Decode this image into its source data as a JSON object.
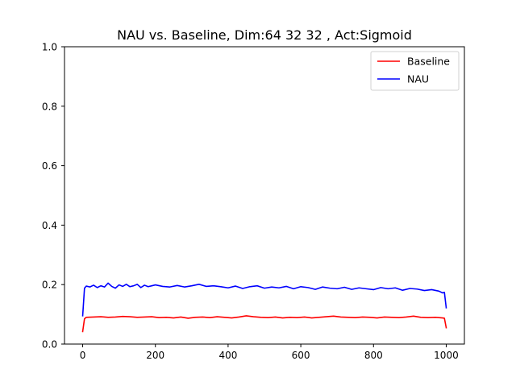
{
  "chart_data": {
    "type": "line",
    "title": "NAU vs. Baseline, Dim:64 32 32 , Act:Sigmoid",
    "xlabel": "",
    "ylabel": "",
    "xlim": [
      -50,
      1050
    ],
    "ylim": [
      0.0,
      1.0
    ],
    "x_ticks": [
      "0",
      "200",
      "400",
      "600",
      "800",
      "1000"
    ],
    "y_ticks": [
      "0.0",
      "0.2",
      "0.4",
      "0.6",
      "0.8",
      "1.0"
    ],
    "grid": false,
    "legend_position": "top-right",
    "series": [
      {
        "name": "Baseline",
        "color": "#ff0000",
        "x": [
          0,
          5,
          10,
          30,
          50,
          70,
          90,
          110,
          130,
          150,
          170,
          190,
          210,
          230,
          250,
          270,
          290,
          310,
          330,
          350,
          370,
          390,
          410,
          430,
          450,
          470,
          490,
          510,
          530,
          550,
          570,
          590,
          610,
          630,
          650,
          670,
          690,
          710,
          730,
          750,
          770,
          790,
          810,
          830,
          850,
          870,
          890,
          910,
          930,
          950,
          970,
          990,
          995,
          1000
        ],
        "values": [
          0.042,
          0.085,
          0.09,
          0.091,
          0.092,
          0.09,
          0.091,
          0.093,
          0.092,
          0.09,
          0.091,
          0.092,
          0.089,
          0.09,
          0.088,
          0.091,
          0.087,
          0.09,
          0.091,
          0.089,
          0.092,
          0.09,
          0.088,
          0.091,
          0.095,
          0.092,
          0.09,
          0.089,
          0.091,
          0.088,
          0.09,
          0.089,
          0.091,
          0.088,
          0.09,
          0.092,
          0.094,
          0.091,
          0.09,
          0.089,
          0.091,
          0.09,
          0.088,
          0.091,
          0.09,
          0.089,
          0.091,
          0.094,
          0.09,
          0.089,
          0.09,
          0.088,
          0.087,
          0.055
        ]
      },
      {
        "name": "NAU",
        "color": "#0000ff",
        "x": [
          0,
          5,
          10,
          20,
          30,
          40,
          50,
          60,
          70,
          80,
          90,
          100,
          110,
          120,
          130,
          140,
          150,
          160,
          170,
          180,
          190,
          200,
          220,
          240,
          260,
          280,
          300,
          320,
          340,
          360,
          380,
          400,
          420,
          440,
          460,
          480,
          500,
          520,
          540,
          560,
          580,
          600,
          620,
          640,
          660,
          680,
          700,
          720,
          740,
          760,
          780,
          800,
          820,
          840,
          860,
          880,
          900,
          920,
          940,
          960,
          980,
          990,
          995,
          1000
        ],
        "values": [
          0.095,
          0.188,
          0.195,
          0.192,
          0.198,
          0.19,
          0.196,
          0.192,
          0.205,
          0.194,
          0.188,
          0.199,
          0.194,
          0.201,
          0.193,
          0.196,
          0.201,
          0.19,
          0.198,
          0.193,
          0.196,
          0.199,
          0.194,
          0.192,
          0.197,
          0.192,
          0.196,
          0.201,
          0.194,
          0.196,
          0.193,
          0.189,
          0.195,
          0.187,
          0.193,
          0.196,
          0.188,
          0.192,
          0.189,
          0.194,
          0.186,
          0.193,
          0.19,
          0.184,
          0.192,
          0.188,
          0.186,
          0.191,
          0.184,
          0.189,
          0.186,
          0.183,
          0.19,
          0.186,
          0.189,
          0.181,
          0.187,
          0.185,
          0.18,
          0.183,
          0.178,
          0.172,
          0.174,
          0.122
        ]
      }
    ]
  }
}
